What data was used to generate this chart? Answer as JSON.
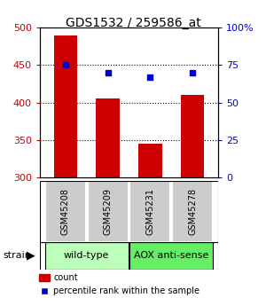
{
  "title": "GDS1532 / 259586_at",
  "samples": [
    "GSM45208",
    "GSM45209",
    "GSM45231",
    "GSM45278"
  ],
  "counts": [
    490,
    405,
    345,
    410
  ],
  "percentiles": [
    75,
    70,
    67,
    70
  ],
  "ylim_left": [
    300,
    500
  ],
  "ylim_right": [
    0,
    100
  ],
  "yticks_left": [
    300,
    350,
    400,
    450,
    500
  ],
  "yticks_right": [
    0,
    25,
    50,
    75,
    100
  ],
  "bar_color": "#cc0000",
  "dot_color": "#0000cc",
  "bar_width": 0.55,
  "groups": [
    {
      "label": "wild-type",
      "indices": [
        0,
        1
      ],
      "color": "#bbffbb"
    },
    {
      "label": "AOX anti-sense",
      "indices": [
        2,
        3
      ],
      "color": "#66ee66"
    }
  ],
  "sample_box_color": "#cccccc",
  "title_fontsize": 10,
  "tick_fontsize": 8,
  "label_fontsize": 7,
  "group_fontsize": 8
}
